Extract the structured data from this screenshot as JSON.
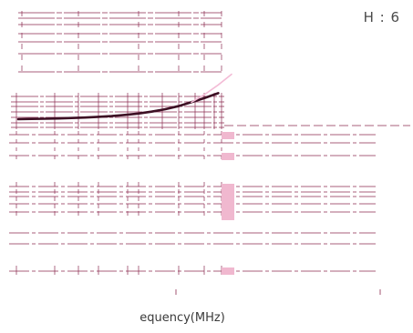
{
  "corner_text": "H : 6",
  "chart_data": {
    "type": "line",
    "title": "",
    "xlabel": "equency(MHz)",
    "ylabel": "",
    "grid": true,
    "legend": "none",
    "series": [
      {
        "color": "#3d1024",
        "x": [
          0,
          0.2,
          0.4,
          0.6,
          0.8,
          1.0,
          1.2,
          1.4,
          1.6,
          1.8,
          2.0,
          2.2,
          2.4,
          2.6,
          2.8,
          3.0
        ],
        "y": [
          0.0,
          0.01,
          0.02,
          0.03,
          0.05,
          0.07,
          0.1,
          0.13,
          0.18,
          0.24,
          0.32,
          0.42,
          0.55,
          0.72,
          0.9,
          1.1
        ]
      },
      {
        "color": "#f3bcd6",
        "x": [
          2.6,
          2.8,
          3.0,
          3.2
        ],
        "y": [
          0.72,
          1.05,
          1.45,
          1.9
        ]
      }
    ],
    "xlim": [
      0,
      3.2
    ],
    "ylim": [
      0,
      2
    ]
  }
}
